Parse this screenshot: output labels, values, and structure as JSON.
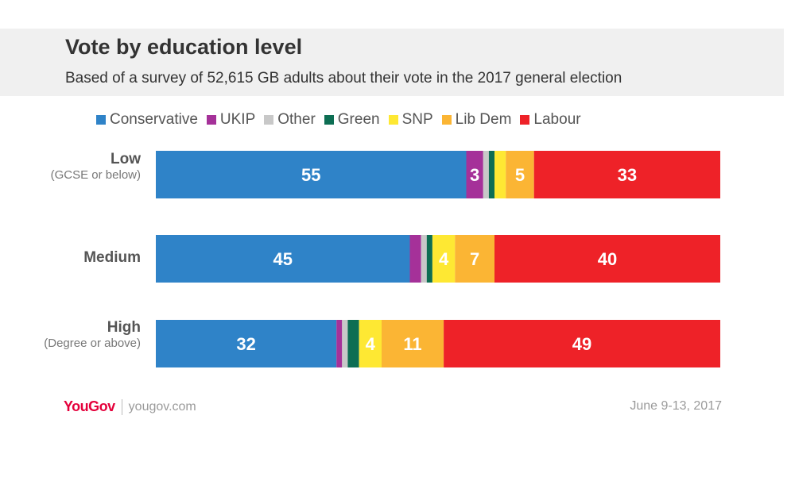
{
  "colors": {
    "Conservative": "#2f83c8",
    "UKIP": "#a53199",
    "Other": "#c8c8c8",
    "Green": "#0d6e53",
    "SNP": "#fee833",
    "Lib Dem": "#fbb534",
    "Labour": "#ee2228"
  },
  "chart_data": {
    "type": "bar",
    "orientation": "horizontal",
    "stacked": true,
    "title": "Vote by education level",
    "subtitle": "Based of a survey of 52,615 GB adults about their vote in the 2017 general election",
    "legend_position": "top",
    "categories": [
      {
        "label": "Low",
        "sublabel": "(GCSE or below)"
      },
      {
        "label": "Medium",
        "sublabel": ""
      },
      {
        "label": "High",
        "sublabel": "(Degree or above)"
      }
    ],
    "series": [
      {
        "name": "Conservative",
        "values": [
          55,
          45,
          32
        ],
        "labels": [
          "55",
          "45",
          "32"
        ]
      },
      {
        "name": "UKIP",
        "values": [
          3,
          2,
          1
        ],
        "labels": [
          "3",
          "",
          ""
        ]
      },
      {
        "name": "Other",
        "values": [
          1,
          1,
          1
        ],
        "labels": [
          "",
          "",
          ""
        ]
      },
      {
        "name": "Green",
        "values": [
          1,
          1,
          2
        ],
        "labels": [
          "",
          "",
          ""
        ]
      },
      {
        "name": "SNP",
        "values": [
          2,
          4,
          4
        ],
        "labels": [
          "",
          "4",
          "4"
        ]
      },
      {
        "name": "Lib Dem",
        "values": [
          5,
          7,
          11
        ],
        "labels": [
          "5",
          "7",
          "11"
        ]
      },
      {
        "name": "Labour",
        "values": [
          33,
          40,
          49
        ],
        "labels": [
          "33",
          "40",
          "49"
        ]
      }
    ]
  },
  "footer": {
    "logo": "YouGov",
    "site": "yougov.com",
    "date": "June 9-13, 2017"
  }
}
